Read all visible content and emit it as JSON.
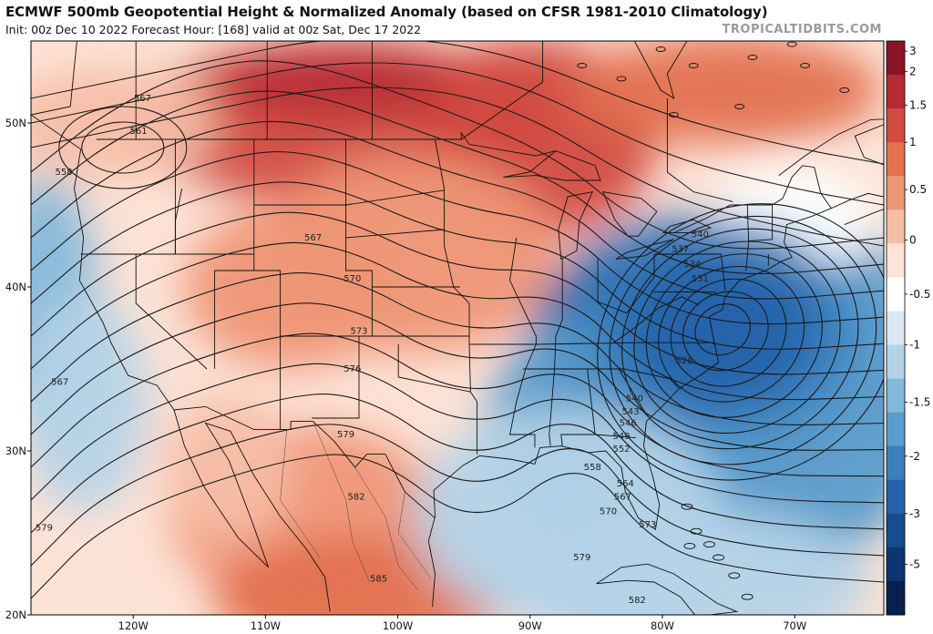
{
  "header": {
    "title": "ECMWF 500mb Geopotential Height & Normalized Anomaly (based on CFSR 1981-2010 Climatology)",
    "subtitle": "Init: 00z Dec 10 2022   Forecast Hour: [168]   valid at 00z Sat, Dec 17 2022",
    "watermark": "TROPICALTIDBITS.COM"
  },
  "map": {
    "lon_range": [
      -128,
      -63
    ],
    "lat_range": [
      20,
      55
    ],
    "lat_ticks": [
      {
        "value": 20,
        "label": "20N"
      },
      {
        "value": 30,
        "label": "30N"
      },
      {
        "value": 40,
        "label": "40N"
      },
      {
        "value": 50,
        "label": "50N"
      }
    ],
    "lon_ticks": [
      {
        "value": -120,
        "label": "120W"
      },
      {
        "value": -110,
        "label": "110W"
      },
      {
        "value": -100,
        "label": "100W"
      },
      {
        "value": -90,
        "label": "90W"
      },
      {
        "value": -80,
        "label": "80W"
      },
      {
        "value": -70,
        "label": "70W"
      }
    ],
    "colorbar": {
      "labels": [
        "3",
        "2",
        "1.5",
        "1",
        "0.5",
        "0",
        "-0.5",
        "-1",
        "-1.5",
        "-2",
        "-3",
        "-5"
      ],
      "colors": [
        "#8a1526",
        "#b52a33",
        "#d24b40",
        "#e3714f",
        "#ef9676",
        "#f7bea6",
        "#fde3d6",
        "#ffffff",
        "#dce9f4",
        "#b4d3e8",
        "#84b8da",
        "#5a9ccb",
        "#3b7fbe",
        "#2563a9",
        "#154c8f",
        "#0e3572",
        "#08204e"
      ]
    },
    "anomaly_features": [
      {
        "name": "north-central-ridge",
        "lon": -104,
        "lat": 50,
        "value": 2.8
      },
      {
        "name": "great-lakes-ridge",
        "lon": -90,
        "lat": 49,
        "value": 2.0
      },
      {
        "name": "plains-ridge",
        "lon": -99,
        "lat": 42,
        "value": 1.3
      },
      {
        "name": "rockies-warm",
        "lon": -108,
        "lat": 40,
        "value": 1.0
      },
      {
        "name": "hudson-warm",
        "lon": -75,
        "lat": 52,
        "value": 1.5
      },
      {
        "name": "pacific-nw-warm",
        "lon": -122,
        "lat": 50,
        "value": 0.8
      },
      {
        "name": "mexico-warm",
        "lon": -107,
        "lat": 26,
        "value": 1.4
      },
      {
        "name": "south-mexico-warm",
        "lon": -103,
        "lat": 21,
        "value": 1.5
      },
      {
        "name": "baja-warm",
        "lon": -113,
        "lat": 29,
        "value": 0.9
      },
      {
        "name": "east-trough",
        "lon": -77,
        "lat": 36,
        "value": -4.0
      },
      {
        "name": "southeast-trough",
        "lon": -83,
        "lat": 31,
        "value": -2.0
      },
      {
        "name": "atlantic-trough",
        "lon": -70,
        "lat": 34,
        "value": -1.6
      },
      {
        "name": "gulf-trough",
        "lon": -87,
        "lat": 26,
        "value": -1.0
      },
      {
        "name": "caribbean-cool",
        "lon": -78,
        "lat": 22,
        "value": -0.9
      },
      {
        "name": "offshore-west-cool",
        "lon": -127,
        "lat": 39,
        "value": -1.1
      },
      {
        "name": "west-coast-cool",
        "lon": -124,
        "lat": 33,
        "value": -0.6
      },
      {
        "name": "new-england-neutral",
        "lon": -70,
        "lat": 44,
        "value": 0.1
      }
    ],
    "contour_labels": [
      {
        "text": "567",
        "lon": -119.5,
        "lat": 51.5
      },
      {
        "text": "561",
        "lon": -119.8,
        "lat": 49.5
      },
      {
        "text": "558",
        "lon": -125.5,
        "lat": 47.0
      },
      {
        "text": "567",
        "lon": -106.5,
        "lat": 43.0
      },
      {
        "text": "570",
        "lon": -103.5,
        "lat": 40.5
      },
      {
        "text": "573",
        "lon": -103.0,
        "lat": 37.3
      },
      {
        "text": "576",
        "lon": -103.5,
        "lat": 35.0
      },
      {
        "text": "579",
        "lon": -104.0,
        "lat": 31.0
      },
      {
        "text": "582",
        "lon": -103.2,
        "lat": 27.2
      },
      {
        "text": "585",
        "lon": -101.5,
        "lat": 22.2
      },
      {
        "text": "579",
        "lon": -127.0,
        "lat": 25.3
      },
      {
        "text": "567",
        "lon": -125.8,
        "lat": 34.2
      },
      {
        "text": "540",
        "lon": -77.0,
        "lat": 43.2
      },
      {
        "text": "537",
        "lon": -78.5,
        "lat": 42.3
      },
      {
        "text": "534",
        "lon": -77.6,
        "lat": 41.4
      },
      {
        "text": "531",
        "lon": -77.0,
        "lat": 40.5
      },
      {
        "text": "528",
        "lon": -78.2,
        "lat": 35.5
      },
      {
        "text": "540",
        "lon": -82.0,
        "lat": 33.2
      },
      {
        "text": "543",
        "lon": -82.3,
        "lat": 32.4
      },
      {
        "text": "546",
        "lon": -82.5,
        "lat": 31.7
      },
      {
        "text": "549",
        "lon": -83.0,
        "lat": 30.9
      },
      {
        "text": "552",
        "lon": -83.0,
        "lat": 30.1
      },
      {
        "text": "558",
        "lon": -85.2,
        "lat": 29.0
      },
      {
        "text": "564",
        "lon": -82.7,
        "lat": 28.0
      },
      {
        "text": "567",
        "lon": -82.9,
        "lat": 27.2
      },
      {
        "text": "570",
        "lon": -84.0,
        "lat": 26.3
      },
      {
        "text": "573",
        "lon": -81.0,
        "lat": 25.5
      },
      {
        "text": "579",
        "lon": -86.0,
        "lat": 23.5
      },
      {
        "text": "582",
        "lon": -81.8,
        "lat": 20.9
      }
    ],
    "trough_center": {
      "lon": -75.5,
      "lat": 37.5
    }
  }
}
